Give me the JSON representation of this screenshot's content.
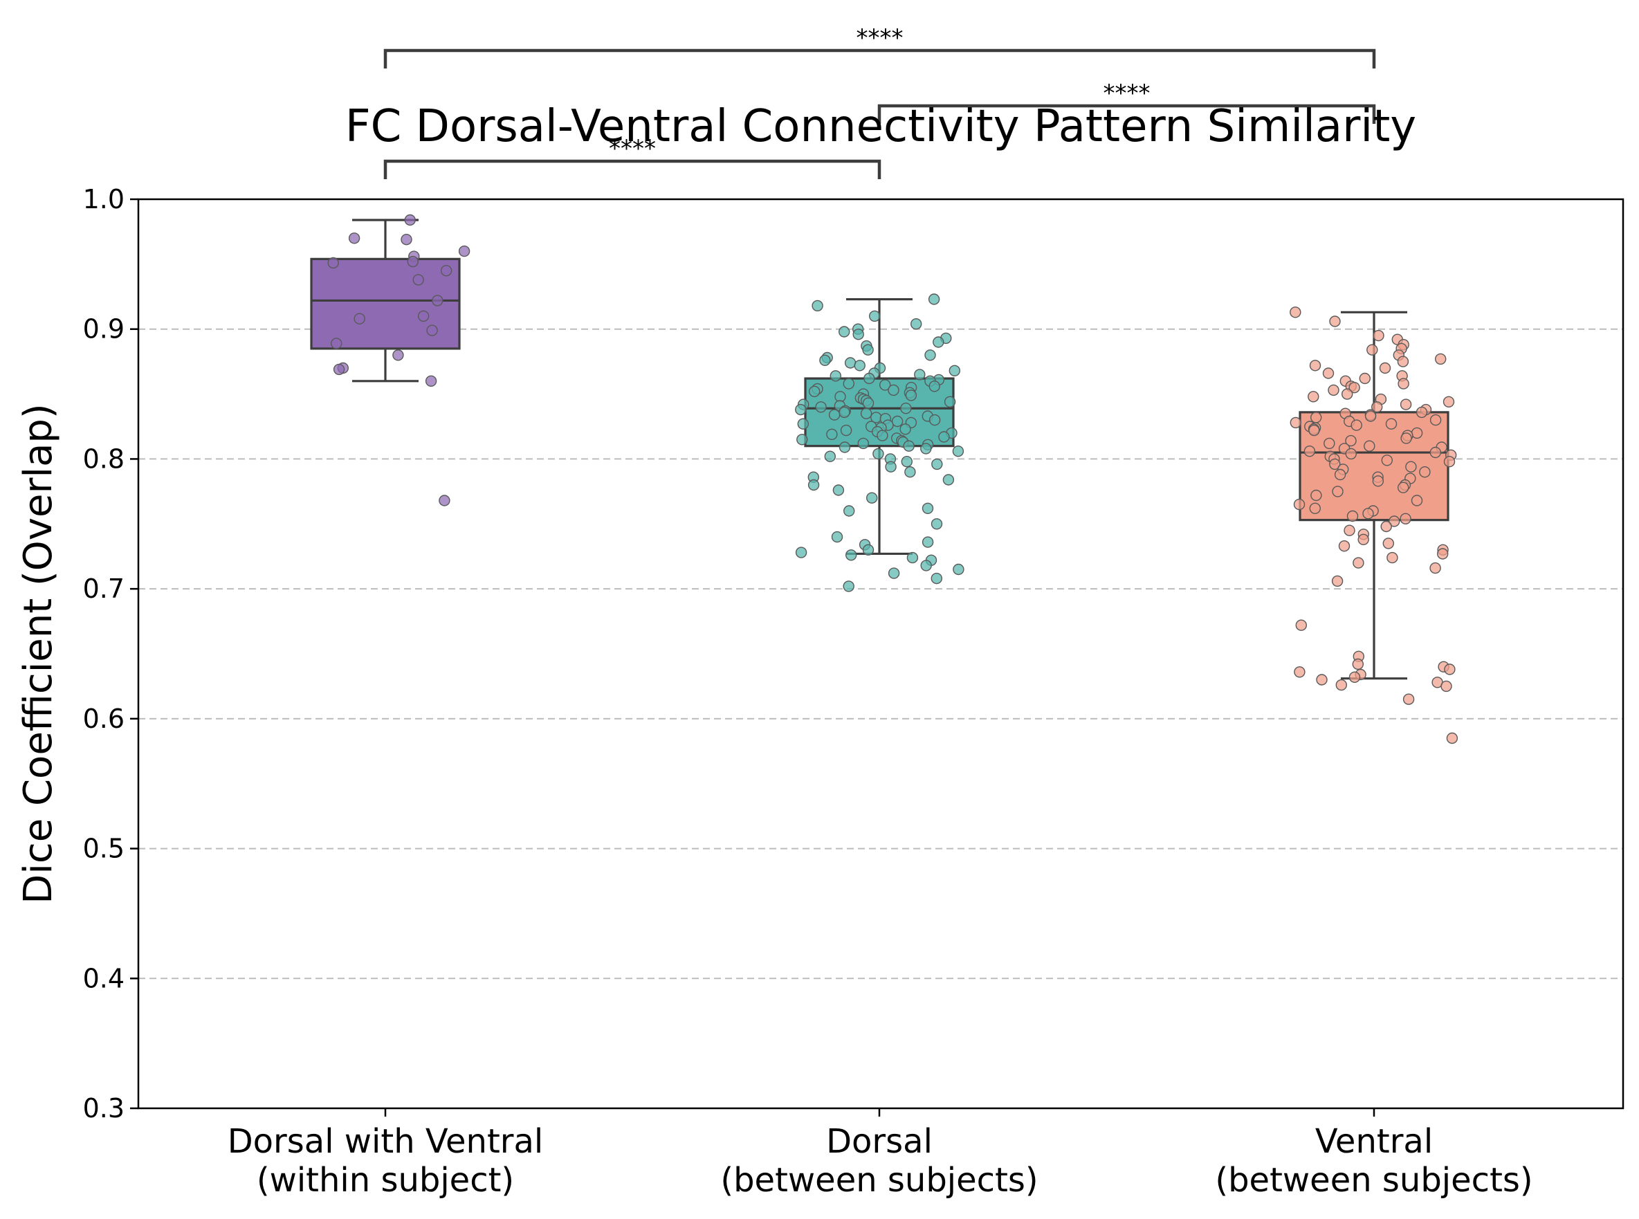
{
  "chart_data": {
    "type": "box",
    "title": "FC Dorsal-Ventral Connectivity Pattern Similarity",
    "ylabel": "Dice Coefficient (Overlap)",
    "ylim": [
      0.3,
      1.0
    ],
    "yticks": [
      "0.3",
      "0.4",
      "0.5",
      "0.6",
      "0.7",
      "0.8",
      "0.9",
      "1.0"
    ],
    "grid": "y-dashed",
    "categories": [
      {
        "line1": "Dorsal with Ventral",
        "line2": "(within subject)"
      },
      {
        "line1": "Dorsal",
        "line2": "(between subjects)"
      },
      {
        "line1": "Ventral",
        "line2": "(between subjects)"
      }
    ],
    "series": [
      {
        "color": "#8e6ab3",
        "box": {
          "whisker_low": 0.86,
          "q1": 0.885,
          "median": 0.922,
          "q3": 0.954,
          "whisker_high": 0.984
        },
        "points": [
          0.984,
          0.97,
          0.969,
          0.96,
          0.956,
          0.952,
          0.951,
          0.945,
          0.938,
          0.922,
          0.91,
          0.908,
          0.899,
          0.889,
          0.88,
          0.87,
          0.869,
          0.86,
          0.768
        ]
      },
      {
        "color": "#57b5ad",
        "box": {
          "whisker_low": 0.727,
          "q1": 0.81,
          "median": 0.839,
          "q3": 0.862,
          "whisker_high": 0.923
        },
        "points": [
          0.923,
          0.918,
          0.91,
          0.904,
          0.9,
          0.898,
          0.896,
          0.893,
          0.89,
          0.887,
          0.884,
          0.88,
          0.878,
          0.876,
          0.874,
          0.872,
          0.87,
          0.868,
          0.866,
          0.865,
          0.864,
          0.862,
          0.861,
          0.86,
          0.858,
          0.857,
          0.856,
          0.855,
          0.854,
          0.853,
          0.852,
          0.851,
          0.85,
          0.849,
          0.848,
          0.847,
          0.846,
          0.845,
          0.844,
          0.843,
          0.842,
          0.841,
          0.84,
          0.839,
          0.838,
          0.837,
          0.836,
          0.835,
          0.834,
          0.833,
          0.832,
          0.831,
          0.83,
          0.829,
          0.828,
          0.827,
          0.826,
          0.825,
          0.824,
          0.823,
          0.822,
          0.821,
          0.82,
          0.819,
          0.818,
          0.817,
          0.816,
          0.815,
          0.814,
          0.813,
          0.812,
          0.811,
          0.81,
          0.809,
          0.808,
          0.806,
          0.804,
          0.802,
          0.8,
          0.798,
          0.796,
          0.794,
          0.79,
          0.786,
          0.784,
          0.78,
          0.776,
          0.77,
          0.762,
          0.76,
          0.75,
          0.74,
          0.736,
          0.734,
          0.73,
          0.728,
          0.726,
          0.724,
          0.722,
          0.718,
          0.715,
          0.712,
          0.708,
          0.702
        ]
      },
      {
        "color": "#f0a08a",
        "box": {
          "whisker_low": 0.631,
          "q1": 0.753,
          "median": 0.805,
          "q3": 0.836,
          "whisker_high": 0.913
        },
        "points": [
          0.913,
          0.906,
          0.895,
          0.892,
          0.888,
          0.885,
          0.884,
          0.88,
          0.877,
          0.875,
          0.872,
          0.87,
          0.866,
          0.864,
          0.862,
          0.86,
          0.858,
          0.856,
          0.855,
          0.853,
          0.85,
          0.848,
          0.846,
          0.844,
          0.842,
          0.84,
          0.838,
          0.836,
          0.835,
          0.834,
          0.833,
          0.832,
          0.83,
          0.829,
          0.828,
          0.827,
          0.826,
          0.825,
          0.824,
          0.823,
          0.822,
          0.82,
          0.818,
          0.816,
          0.814,
          0.812,
          0.81,
          0.809,
          0.808,
          0.806,
          0.805,
          0.804,
          0.803,
          0.802,
          0.8,
          0.799,
          0.798,
          0.796,
          0.794,
          0.792,
          0.79,
          0.788,
          0.786,
          0.785,
          0.783,
          0.78,
          0.778,
          0.775,
          0.772,
          0.768,
          0.765,
          0.762,
          0.76,
          0.758,
          0.756,
          0.754,
          0.752,
          0.748,
          0.745,
          0.742,
          0.738,
          0.735,
          0.733,
          0.73,
          0.727,
          0.724,
          0.72,
          0.716,
          0.706,
          0.672,
          0.648,
          0.642,
          0.64,
          0.638,
          0.636,
          0.634,
          0.632,
          0.63,
          0.628,
          0.626,
          0.625,
          0.615,
          0.585
        ]
      }
    ],
    "annotations": [
      {
        "between": [
          0,
          1
        ],
        "label": "****"
      },
      {
        "between": [
          1,
          2
        ],
        "label": "****"
      },
      {
        "between": [
          0,
          2
        ],
        "label": "****"
      }
    ]
  }
}
